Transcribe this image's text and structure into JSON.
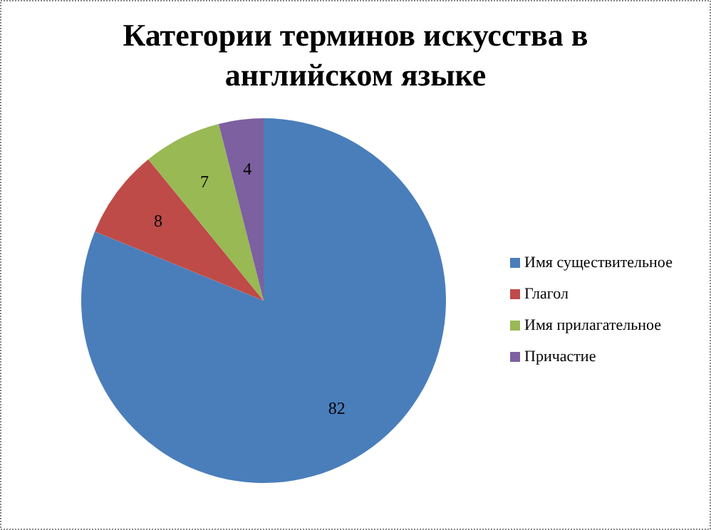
{
  "chart_data": {
    "type": "pie",
    "title": "Категории терминов искусства в английском языке",
    "categories": [
      "Имя существительное",
      "Глагол",
      "Имя прилагательное",
      "Причастие"
    ],
    "values": [
      82,
      8,
      7,
      4
    ],
    "colors": [
      "#4a7ebb",
      "#be4b48",
      "#98b954",
      "#7d60a0"
    ],
    "data_labels": true,
    "legend": "right"
  }
}
